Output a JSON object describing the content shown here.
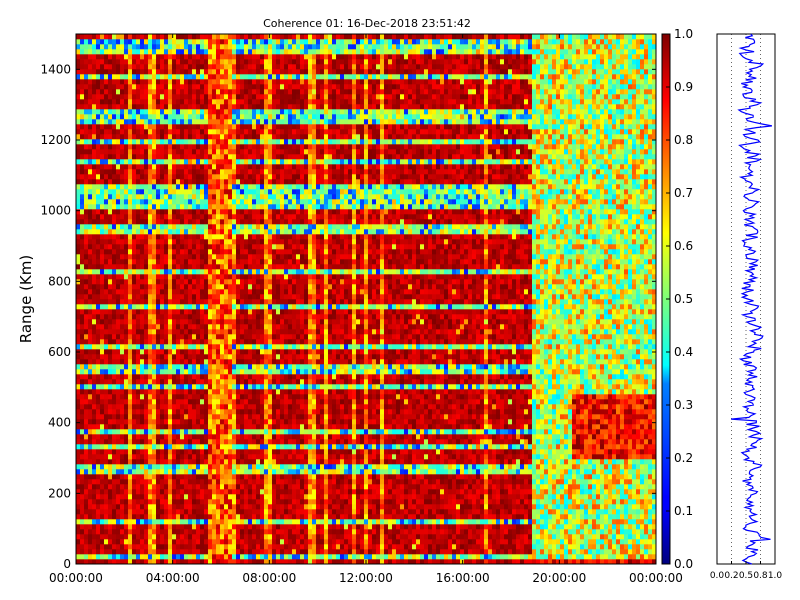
{
  "chart_data": [
    {
      "type": "heatmap",
      "title": "Coherence 01: 16-Dec-2018 23:51:42",
      "xlabel": "",
      "ylabel": "Range (Km)",
      "x_tick_labels": [
        "00:00:00",
        "04:00:00",
        "08:00:00",
        "12:00:00",
        "16:00:00",
        "20:00:00",
        "00:00:00"
      ],
      "x_range_hours": [
        0,
        24
      ],
      "ylim": [
        0,
        1500
      ],
      "y_ticks": [
        0,
        200,
        400,
        600,
        800,
        1000,
        1200,
        1400
      ],
      "colorbar": {
        "colormap": "jet",
        "range": [
          0.0,
          1.0
        ],
        "tick_labels": [
          "0.0",
          "0.1",
          "0.2",
          "0.3",
          "0.4",
          "0.5",
          "0.6",
          "0.7",
          "0.8",
          "0.9",
          "1.0"
        ]
      },
      "structure": {
        "vertical_band_hours": [
          5.5,
          6.5
        ],
        "decoherent_region_start_hour": 18.8,
        "horizontal_stripe_ranges_km": [
          20,
          120,
          270,
          380,
          500,
          620,
          730,
          830,
          950,
          1020,
          1140,
          1260,
          1380,
          1470
        ],
        "bright_feature": {
          "hours": [
            20.5,
            24
          ],
          "range_km": [
            300,
            480
          ]
        }
      }
    },
    {
      "type": "line",
      "title": "",
      "xlabel": "",
      "ylabel": "",
      "x_tick_labels": [
        "0.0",
        "0.2",
        "0.5",
        "0.8",
        "1.0"
      ],
      "xlim": [
        0,
        1
      ],
      "ylim": [
        0,
        1500
      ],
      "series": [
        {
          "color": "#0000ff",
          "mean_value": 0.58
        }
      ]
    }
  ],
  "colors": {
    "line": "#0000ff",
    "axes": "#000000",
    "background": "#ffffff"
  }
}
